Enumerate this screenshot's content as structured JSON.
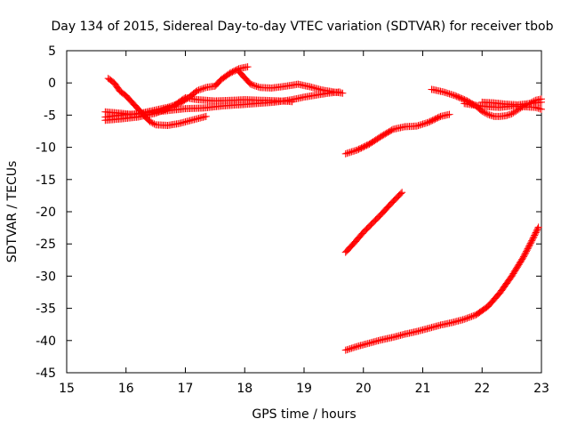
{
  "chart_data": {
    "type": "scatter",
    "title": "Day 134 of 2015, Sidereal Day-to-day VTEC variation (SDTVAR) for receiver tbob",
    "xlabel": "GPS time / hours",
    "ylabel": "SDTVAR / TECUs",
    "xlim": [
      15,
      23
    ],
    "ylim": [
      -45,
      5
    ],
    "xticks": [
      "15",
      "16",
      "17",
      "18",
      "19",
      "20",
      "21",
      "22",
      "23"
    ],
    "yticks": [
      "5",
      "0",
      "-5",
      "-10",
      "-15",
      "-20",
      "-25",
      "-30",
      "-35",
      "-40",
      "-45"
    ],
    "grid": false,
    "marker": "plus",
    "color": "#ff0000",
    "series": [
      {
        "points": [
          [
            15.7,
            0.7
          ],
          [
            15.8,
            0.0
          ],
          [
            15.9,
            -1.3
          ],
          [
            16.0,
            -2.0
          ],
          [
            16.1,
            -3.0
          ],
          [
            16.2,
            -4.0
          ],
          [
            16.3,
            -5.0
          ],
          [
            16.4,
            -6.0
          ],
          [
            16.5,
            -6.5
          ],
          [
            16.7,
            -6.6
          ],
          [
            16.9,
            -6.3
          ],
          [
            17.1,
            -5.8
          ],
          [
            17.35,
            -5.2
          ]
        ]
      },
      {
        "points": [
          [
            15.65,
            -5.3
          ],
          [
            15.9,
            -5.0
          ],
          [
            16.2,
            -4.8
          ],
          [
            16.5,
            -4.5
          ],
          [
            16.8,
            -4.2
          ],
          [
            17.0,
            -4.0
          ],
          [
            17.3,
            -3.9
          ],
          [
            17.6,
            -3.6
          ],
          [
            17.9,
            -3.4
          ],
          [
            18.2,
            -3.2
          ],
          [
            18.5,
            -3.0
          ],
          [
            18.8,
            -2.6
          ],
          [
            19.0,
            -2.2
          ],
          [
            19.2,
            -1.9
          ],
          [
            19.4,
            -1.6
          ],
          [
            19.6,
            -1.4
          ]
        ]
      },
      {
        "points": [
          [
            15.65,
            -4.5
          ],
          [
            15.9,
            -4.7
          ],
          [
            16.1,
            -4.9
          ],
          [
            16.3,
            -4.6
          ],
          [
            16.5,
            -4.2
          ],
          [
            16.7,
            -3.8
          ],
          [
            16.9,
            -3.2
          ],
          [
            17.05,
            -2.3
          ],
          [
            17.2,
            -1.2
          ],
          [
            17.35,
            -0.7
          ],
          [
            17.5,
            -0.5
          ],
          [
            17.6,
            0.5
          ],
          [
            17.75,
            1.5
          ],
          [
            17.9,
            2.2
          ],
          [
            18.05,
            2.5
          ]
        ]
      },
      {
        "points": [
          [
            17.9,
            1.8
          ],
          [
            18.0,
            0.8
          ],
          [
            18.1,
            -0.2
          ],
          [
            18.25,
            -0.7
          ],
          [
            18.45,
            -0.8
          ],
          [
            18.7,
            -0.5
          ],
          [
            18.9,
            -0.2
          ],
          [
            19.1,
            -0.6
          ],
          [
            19.3,
            -1.1
          ],
          [
            19.5,
            -1.4
          ],
          [
            19.65,
            -1.6
          ]
        ]
      },
      {
        "points": [
          [
            15.65,
            -5.8
          ],
          [
            15.9,
            -5.6
          ],
          [
            16.2,
            -5.3
          ],
          [
            16.5,
            -4.7
          ],
          [
            16.8,
            -3.6
          ],
          [
            17.0,
            -2.3
          ],
          [
            17.2,
            -2.6
          ],
          [
            17.5,
            -2.8
          ],
          [
            17.8,
            -2.7
          ],
          [
            18.0,
            -2.6
          ],
          [
            18.3,
            -2.7
          ],
          [
            18.6,
            -2.8
          ],
          [
            18.8,
            -2.9
          ]
        ]
      },
      {
        "points": [
          [
            19.7,
            -11.0
          ],
          [
            19.9,
            -10.4
          ],
          [
            20.1,
            -9.5
          ],
          [
            20.3,
            -8.3
          ],
          [
            20.5,
            -7.2
          ],
          [
            20.7,
            -6.8
          ],
          [
            20.9,
            -6.7
          ],
          [
            21.1,
            -6.1
          ],
          [
            21.3,
            -5.2
          ],
          [
            21.45,
            -4.9
          ]
        ]
      },
      {
        "points": [
          [
            19.7,
            -26.3
          ],
          [
            19.85,
            -24.8
          ],
          [
            20.0,
            -23.2
          ],
          [
            20.15,
            -21.8
          ],
          [
            20.3,
            -20.4
          ],
          [
            20.45,
            -18.9
          ],
          [
            20.65,
            -17.0
          ]
        ]
      },
      {
        "points": [
          [
            19.7,
            -41.5
          ],
          [
            19.9,
            -40.9
          ],
          [
            20.1,
            -40.4
          ],
          [
            20.3,
            -39.9
          ],
          [
            20.5,
            -39.5
          ],
          [
            20.7,
            -39.0
          ],
          [
            20.9,
            -38.6
          ],
          [
            21.1,
            -38.1
          ],
          [
            21.3,
            -37.6
          ],
          [
            21.5,
            -37.2
          ],
          [
            21.7,
            -36.7
          ],
          [
            21.9,
            -36.0
          ],
          [
            22.1,
            -34.7
          ],
          [
            22.3,
            -32.6
          ],
          [
            22.5,
            -30.0
          ],
          [
            22.7,
            -27.0
          ],
          [
            22.85,
            -24.3
          ],
          [
            22.95,
            -22.4
          ]
        ]
      },
      {
        "points": [
          [
            21.15,
            -1.0
          ],
          [
            21.35,
            -1.4
          ],
          [
            21.55,
            -2.0
          ],
          [
            21.75,
            -2.8
          ],
          [
            21.9,
            -3.6
          ],
          [
            22.0,
            -4.4
          ],
          [
            22.1,
            -4.9
          ],
          [
            22.2,
            -5.2
          ],
          [
            22.3,
            -5.2
          ],
          [
            22.4,
            -5.1
          ],
          [
            22.5,
            -4.8
          ],
          [
            22.6,
            -4.2
          ],
          [
            22.7,
            -3.6
          ],
          [
            22.8,
            -3.2
          ],
          [
            22.9,
            -2.7
          ],
          [
            23.0,
            -2.5
          ]
        ]
      },
      {
        "points": [
          [
            21.7,
            -3.2
          ],
          [
            21.9,
            -3.5
          ],
          [
            22.1,
            -3.7
          ],
          [
            22.3,
            -3.8
          ],
          [
            22.5,
            -3.6
          ],
          [
            22.7,
            -3.7
          ],
          [
            22.9,
            -3.8
          ],
          [
            23.0,
            -4.1
          ]
        ]
      },
      {
        "points": [
          [
            22.0,
            -3.0
          ],
          [
            22.2,
            -3.1
          ],
          [
            22.4,
            -3.3
          ],
          [
            22.6,
            -3.4
          ],
          [
            22.8,
            -3.2
          ],
          [
            23.0,
            -3.0
          ]
        ]
      }
    ]
  }
}
